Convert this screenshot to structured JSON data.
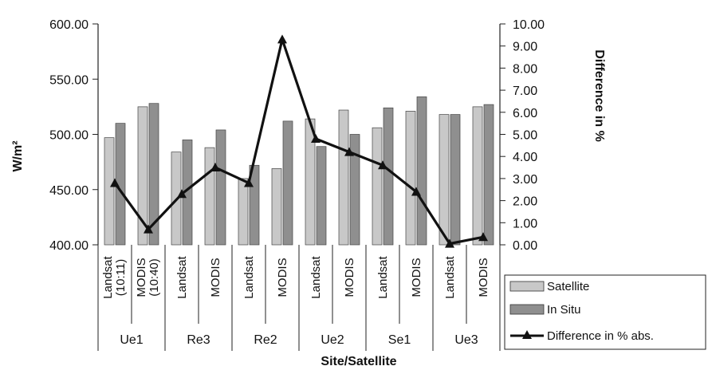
{
  "chart_data": {
    "type": "bar",
    "xlabel": "Site/Satellite",
    "ylabel": "W/m²",
    "y2label": "Difference in %",
    "ylim": [
      400,
      600
    ],
    "y2lim": [
      0,
      10
    ],
    "y_ticks": [
      "400.00",
      "450.00",
      "500.00",
      "550.00",
      "600.00"
    ],
    "y2_ticks": [
      "0.00",
      "1.00",
      "2.00",
      "3.00",
      "4.00",
      "5.00",
      "6.00",
      "7.00",
      "8.00",
      "9.00",
      "10.00"
    ],
    "categories": [
      {
        "sensor": "Landsat",
        "time": "(10:11)",
        "site": "Ue1"
      },
      {
        "sensor": "MODIS",
        "time": "(10:40)",
        "site": "Ue1"
      },
      {
        "sensor": "Landsat",
        "time": "",
        "site": "Re3"
      },
      {
        "sensor": "MODIS",
        "time": "",
        "site": "Re3"
      },
      {
        "sensor": "Landsat",
        "time": "",
        "site": "Re2"
      },
      {
        "sensor": "MODIS",
        "time": "",
        "site": "Re2"
      },
      {
        "sensor": "Landsat",
        "time": "",
        "site": "Ue2"
      },
      {
        "sensor": "MODIS",
        "time": "",
        "site": "Ue2"
      },
      {
        "sensor": "Landsat",
        "time": "",
        "site": "Se1"
      },
      {
        "sensor": "MODIS",
        "time": "",
        "site": "Se1"
      },
      {
        "sensor": "Landsat",
        "time": "",
        "site": "Ue3"
      },
      {
        "sensor": "MODIS",
        "time": "",
        "site": "Ue3"
      }
    ],
    "sites": [
      "Ue1",
      "Re3",
      "Re2",
      "Ue2",
      "Se1",
      "Ue3"
    ],
    "series": [
      {
        "name": "Satellite",
        "kind": "bar",
        "axis": "left",
        "color": "#c8c8c8",
        "values": [
          497,
          525,
          484,
          488,
          460,
          469,
          514,
          522,
          506,
          521,
          518,
          525
        ]
      },
      {
        "name": "In Situ",
        "kind": "bar",
        "axis": "left",
        "color": "#8f8f8f",
        "values": [
          510,
          528,
          495,
          504,
          472,
          512,
          489,
          500,
          524,
          534,
          518,
          527
        ]
      },
      {
        "name": "Difference in % abs.",
        "kind": "line",
        "axis": "right",
        "color": "#111111",
        "values": [
          2.8,
          0.7,
          2.3,
          3.5,
          2.8,
          9.3,
          4.8,
          4.2,
          3.6,
          2.4,
          0.05,
          0.35
        ]
      }
    ],
    "legend_position": "bottom-right",
    "grid": false
  }
}
